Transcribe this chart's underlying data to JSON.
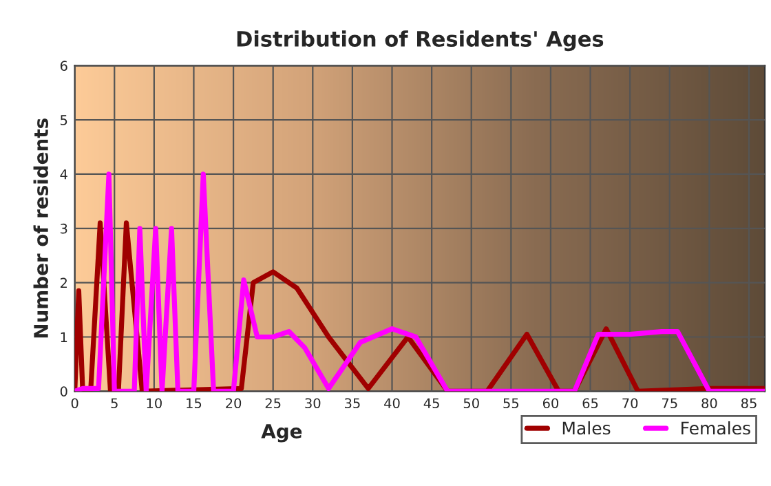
{
  "chart_data": {
    "type": "line",
    "title": "Distribution of Residents' Ages",
    "xlabel": "Age",
    "ylabel": "Number of residents",
    "xlim": [
      0,
      87
    ],
    "xticks": [
      0,
      5,
      10,
      15,
      20,
      25,
      30,
      35,
      40,
      45,
      50,
      55,
      60,
      65,
      70,
      75,
      80,
      85
    ],
    "ylim": [
      0,
      6
    ],
    "yticks": [
      0,
      1,
      2,
      3,
      4,
      5,
      6
    ],
    "grid": true,
    "legend": "bottom right",
    "marker": "none",
    "line_style": "solid",
    "series": [
      {
        "name": "Males",
        "color": "#a00000",
        "x": [
          0,
          0.5,
          1,
          2,
          3.2,
          4.5,
          5.5,
          6.5,
          8.5,
          21,
          22.5,
          25,
          28,
          32,
          37,
          42,
          47,
          52,
          57,
          61,
          63,
          67,
          71,
          80,
          87
        ],
        "values": [
          0,
          1.85,
          0,
          0,
          3.1,
          0,
          0,
          3.1,
          0,
          0.05,
          2.0,
          2.2,
          1.9,
          1.0,
          0.05,
          1.0,
          0,
          0,
          1.05,
          0,
          0,
          1.15,
          0,
          0.05,
          0.05
        ]
      },
      {
        "name": "Females",
        "color": "#ff00ff",
        "x": [
          0,
          1,
          3,
          4.3,
          5,
          7.5,
          8.2,
          9,
          10.2,
          11,
          12.2,
          13,
          15,
          16.2,
          17.5,
          20,
          21.3,
          23,
          25,
          27,
          29,
          32,
          36,
          40,
          43,
          47,
          52,
          57,
          61,
          63,
          66,
          70,
          74,
          76,
          80,
          87
        ],
        "values": [
          0,
          0.05,
          0.05,
          4,
          0,
          0,
          3,
          0,
          3,
          0,
          3,
          0,
          0,
          4,
          0,
          0,
          2.05,
          1.0,
          1.0,
          1.1,
          0.8,
          0.05,
          0.9,
          1.15,
          1.0,
          0,
          0,
          0,
          0,
          0,
          1.05,
          1.05,
          1.1,
          1.1,
          0,
          0
        ]
      }
    ]
  }
}
